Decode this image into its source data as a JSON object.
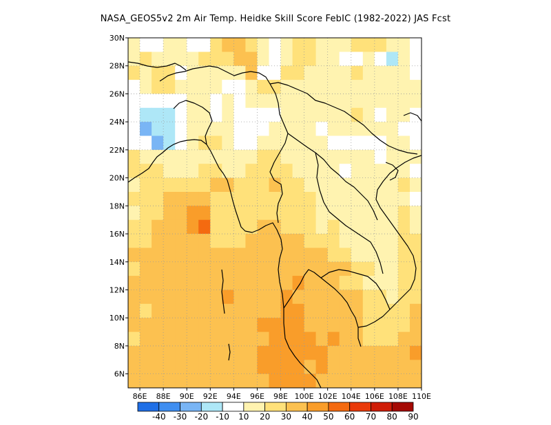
{
  "title": "NASA_GEOS5v2  2m Air Temp. Heidke Skill Score FebIC (1982-2022) JAS Fcst",
  "chart_data": {
    "type": "heatmap",
    "xlim": [
      85,
      110
    ],
    "ylim": [
      5,
      30
    ],
    "x_ticks": [
      "86E",
      "88E",
      "90E",
      "92E",
      "94E",
      "96E",
      "98E",
      "100E",
      "102E",
      "104E",
      "106E",
      "108E",
      "110E"
    ],
    "x_tick_values": [
      86,
      88,
      90,
      92,
      94,
      96,
      98,
      100,
      102,
      104,
      106,
      108,
      110
    ],
    "y_ticks": [
      "30N",
      "28N",
      "26N",
      "24N",
      "22N",
      "20N",
      "18N",
      "16N",
      "14N",
      "12N",
      "10N",
      "8N",
      "6N"
    ],
    "y_tick_values": [
      30,
      28,
      26,
      24,
      22,
      20,
      18,
      16,
      14,
      12,
      10,
      8,
      6
    ],
    "grid": true,
    "colorbar": {
      "labels": [
        "-40",
        "-30",
        "-20",
        "-10",
        "10",
        "20",
        "30",
        "40",
        "50",
        "60",
        "70",
        "80",
        "90"
      ],
      "colors": [
        "#1f6fe6",
        "#3f8ef0",
        "#79b5f5",
        "#aee7f7",
        "#ffffff",
        "#fff3b0",
        "#ffe17a",
        "#fcc150",
        "#f99d2a",
        "#f46a10",
        "#e93a0a",
        "#cf1d07",
        "#a50a04"
      ]
    },
    "grid_field": {
      "lon_start": 85,
      "lat_start": 30,
      "step": 1,
      "rows": [
        "5445544677654566555666554",
        "5655556667754566554454354",
        "6566455555744665555655554",
        "4566555544566555555555555",
        "4444455454555555555555555",
        "4333455454444555555654554",
        "4233455554445555455555544",
        "4423456654455555544444554",
        "6555555555566555555554555",
        "6665556655666655554555554",
        "5666666776667665555555565",
        "6667777666666666555555554",
        "5667788666666666555555565",
        "6677789666677666565555565",
        "6677777666777776665555566",
        "7777777777777777766555566",
        "6777777777777777777665566",
        "7777777777777787776655566",
        "7777777787777877777766566",
        "7677777777777887777766667",
        "7777777777788887777766667",
        "6777777777778888787766677",
        "7777777777788888877777778",
        "7777777777788887877777777",
        "7777777777778888777777777"
      ]
    }
  }
}
